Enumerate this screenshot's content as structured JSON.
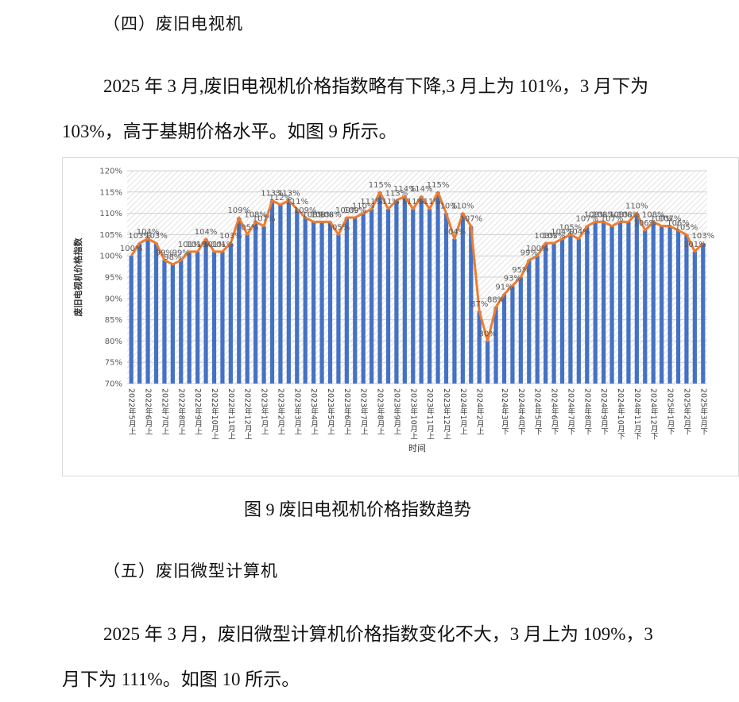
{
  "section_4": "（四）废旧电视机",
  "paragraph_1": "2025 年 3 月,废旧电视机价格指数略有下降,3 月上为 101%，3 月下为 103%，高于基期价格水平。如图 9 所示。",
  "chart_data": {
    "type": "bar_line",
    "y_axis_label": "废旧电视机价格指数",
    "x_axis_label": "时间",
    "categories": [
      "2022年5月上",
      null,
      "2022年6月上",
      null,
      "2022年7月上",
      null,
      "2022年8月上",
      null,
      "2022年9月上",
      null,
      "2022年10月上",
      null,
      "2022年11月上",
      null,
      "2022年12月上",
      null,
      "2023年1月上",
      null,
      "2023年2月上",
      null,
      "2023年3月上",
      null,
      "2023年4月上",
      null,
      "2023年5月上",
      null,
      "2023年6月上",
      null,
      "2023年7月上",
      null,
      "2023年8月上",
      null,
      "2023年9月上",
      null,
      "2023年10月上",
      null,
      "2023年11月上",
      null,
      "2023年12月上",
      null,
      "2024年1月上",
      null,
      "2024年2月上",
      null,
      null,
      "2024年3月下",
      null,
      "2024年4月下",
      null,
      "2024年5月下",
      null,
      "2024年6月下",
      null,
      "2024年7月下",
      null,
      "2024年8月下",
      null,
      "2024年9月下",
      null,
      "2024年10月下",
      null,
      "2024年11月下",
      null,
      "2024年12月下",
      null,
      "2025年1月下",
      null,
      "2025年2月下",
      null,
      "2025年3月下"
    ],
    "values": [
      100,
      103,
      104,
      103,
      99,
      98,
      99,
      101,
      101,
      104,
      101,
      101,
      103,
      109,
      105,
      108,
      107,
      113,
      112,
      113,
      111,
      109,
      108,
      108,
      108,
      105,
      109,
      109,
      110,
      111,
      115,
      111,
      113,
      114,
      111,
      114,
      111,
      115,
      110,
      104,
      110,
      107,
      87,
      80,
      88,
      91,
      93,
      95,
      99,
      100,
      103,
      103,
      104,
      105,
      104,
      107,
      108,
      108,
      107,
      108,
      108,
      110,
      106,
      108,
      107,
      107,
      106,
      105,
      101,
      103
    ],
    "value_labels": [
      "100%",
      "103%",
      "104%",
      "103%",
      "99%",
      "98%",
      "99%",
      "101%",
      "101%",
      "104%",
      "101%",
      "101%",
      "103%",
      "109%",
      "105%",
      "108%",
      "107%",
      "113%",
      "112%",
      "113%",
      "111%",
      "109%",
      "108%",
      "108%",
      "108%",
      "105%",
      "109%",
      "109%",
      "110%",
      "111%",
      "115%",
      "111%",
      "113%",
      "114%",
      "111%",
      "114%",
      "111%",
      "115%",
      "110%",
      "104%",
      "110%",
      "107%",
      "87%",
      "80%",
      "88%",
      "91%",
      "93%",
      "95%",
      "99%",
      "100%",
      "103%",
      "103%",
      "104%",
      "105%",
      "104%",
      "107%",
      "108%",
      "108%",
      "107%",
      "108%",
      "108%",
      "110%",
      "106%",
      "108%",
      "107%",
      "107%",
      "106%",
      "105%",
      "101%",
      "103%"
    ],
    "bar_color": "#4472c4",
    "line_color": "#ed7d31",
    "ylim": [
      70,
      120
    ],
    "yticks": [
      {
        "value": 70,
        "label": "70%"
      },
      {
        "value": 75,
        "label": "75%"
      },
      {
        "value": 80,
        "label": "80%"
      },
      {
        "value": 85,
        "label": "85%"
      },
      {
        "value": 90,
        "label": "90%"
      },
      {
        "value": 95,
        "label": "95%"
      },
      {
        "value": 100,
        "label": "100%"
      },
      {
        "value": 105,
        "label": "105%"
      },
      {
        "value": 110,
        "label": "110%"
      },
      {
        "value": 115,
        "label": "115%"
      },
      {
        "value": 120,
        "label": "120%"
      }
    ],
    "grid": true
  },
  "figure_caption": "图 9  废旧电视机价格指数趋势",
  "section_5": "（五）废旧微型计算机",
  "paragraph_2": "2025 年 3 月，废旧微型计算机价格指数变化不大，3 月上为 109%，3 月下为 111%。如图 10 所示。"
}
